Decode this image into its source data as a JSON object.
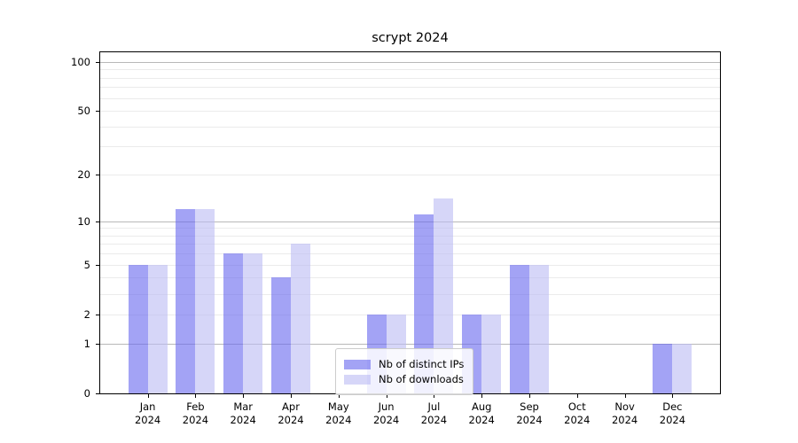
{
  "title": "scrypt 2024",
  "chart_data": {
    "type": "bar",
    "title": "scrypt 2024",
    "categories": [
      "Jan",
      "Feb",
      "Mar",
      "Apr",
      "May",
      "Jun",
      "Jul",
      "Aug",
      "Sep",
      "Oct",
      "Nov",
      "Dec"
    ],
    "category_year": "2024",
    "series": [
      {
        "name": "Nb of distinct IPs",
        "color": "rgba(102,102,238,0.6)",
        "values": [
          5,
          12,
          6,
          4,
          0,
          2,
          11,
          2,
          5,
          0,
          0,
          1
        ]
      },
      {
        "name": "Nb of downloads",
        "color": "rgba(187,187,243,0.6)",
        "values": [
          5,
          12,
          6,
          7,
          0,
          2,
          14,
          2,
          5,
          0,
          0,
          1
        ]
      }
    ],
    "yscale": "log1p",
    "ylim": [
      0,
      114
    ],
    "yticks": [
      0,
      1,
      2,
      5,
      10,
      20,
      50,
      100
    ],
    "major_grid_values": [
      1,
      10,
      100
    ],
    "minor_grid_values": [
      2,
      3,
      4,
      5,
      6,
      7,
      8,
      9,
      20,
      30,
      40,
      50,
      60,
      70,
      80,
      90
    ],
    "grid": true,
    "legend_position": "lower center"
  },
  "colors": {
    "background": "#ffffff",
    "bar_distinct_ips": "rgba(102,102,238,0.6)",
    "bar_downloads": "rgba(187,187,243,0.6)",
    "major_grid": "#b8b8b8",
    "minor_grid": "#ebebeb",
    "spine": "#000000",
    "legend_border": "#cccccc"
  }
}
